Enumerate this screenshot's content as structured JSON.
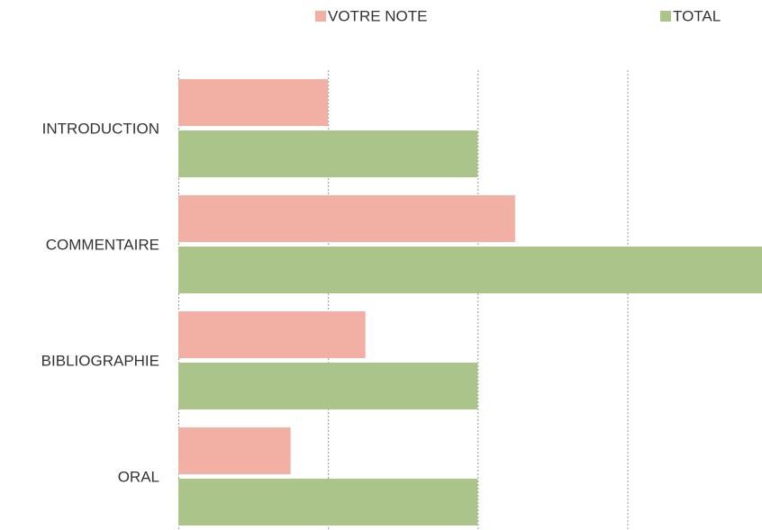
{
  "chart_data": {
    "type": "bar",
    "orientation": "horizontal",
    "categories": [
      "INTRODUCTION",
      "COMMENTAIRE",
      "BIBLIOGRAPHIE",
      "ORAL"
    ],
    "series": [
      {
        "name": "VOTRE NOTE",
        "color": "#f2afa4",
        "values": [
          1,
          2.25,
          1.25,
          0.75
        ]
      },
      {
        "name": "TOTAL",
        "color": "#abc48a",
        "values": [
          2,
          4,
          2,
          2
        ]
      }
    ],
    "xlim": [
      0,
      3.9
    ],
    "xticks": [
      0,
      1,
      2,
      3
    ],
    "grid": true,
    "legend": "top"
  }
}
